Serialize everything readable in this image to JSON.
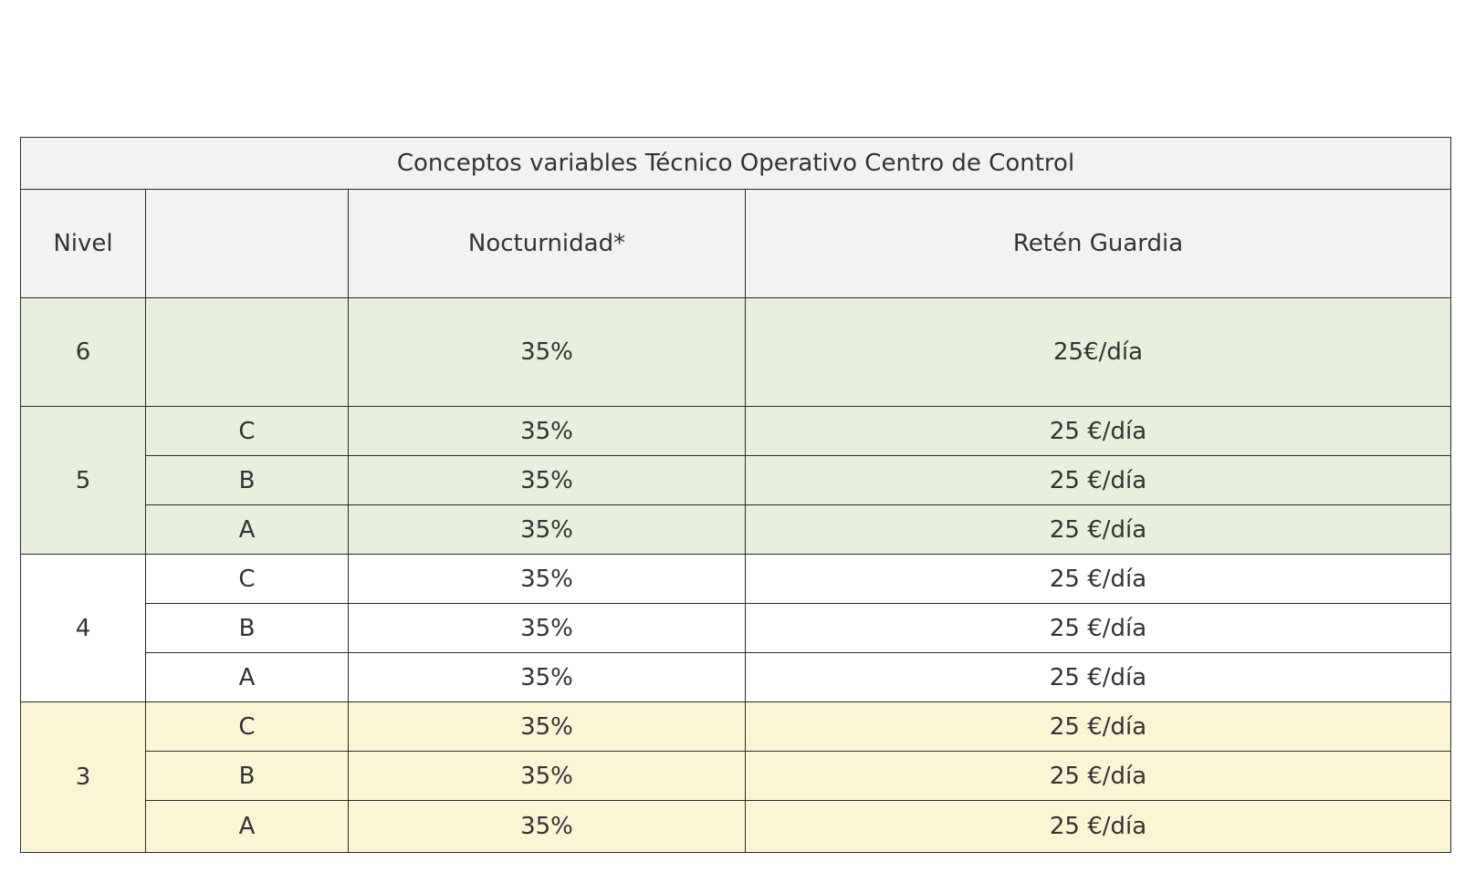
{
  "table": {
    "title": "Conceptos variables Técnico Operativo Centro de Control",
    "headers": {
      "nivel": "Nivel",
      "sub": "",
      "nocturnidad": "Nocturnidad*",
      "reten": "Retén Guardia"
    },
    "groups": [
      {
        "nivel": "6",
        "color": "#e7efdd",
        "rows": [
          {
            "sub": "",
            "nocturnidad": "35%",
            "reten": "25€/día"
          }
        ]
      },
      {
        "nivel": "5",
        "color": "#e7efdd",
        "rows": [
          {
            "sub": "C",
            "nocturnidad": "35%",
            "reten": "25 €/día"
          },
          {
            "sub": "B",
            "nocturnidad": "35%",
            "reten": "25 €/día"
          },
          {
            "sub": "A",
            "nocturnidad": "35%",
            "reten": "25 €/día"
          }
        ]
      },
      {
        "nivel": "4",
        "color": "#ffffff",
        "rows": [
          {
            "sub": "C",
            "nocturnidad": "35%",
            "reten": "25 €/día"
          },
          {
            "sub": "B",
            "nocturnidad": "35%",
            "reten": "25 €/día"
          },
          {
            "sub": "A",
            "nocturnidad": "35%",
            "reten": "25 €/día"
          }
        ]
      },
      {
        "nivel": "3",
        "color": "#fbf5d6",
        "rows": [
          {
            "sub": "C",
            "nocturnidad": "35%",
            "reten": "25 €/día"
          },
          {
            "sub": "B",
            "nocturnidad": "35%",
            "reten": "25 €/día"
          },
          {
            "sub": "A",
            "nocturnidad": "35%",
            "reten": "25 €/día"
          }
        ]
      }
    ]
  }
}
